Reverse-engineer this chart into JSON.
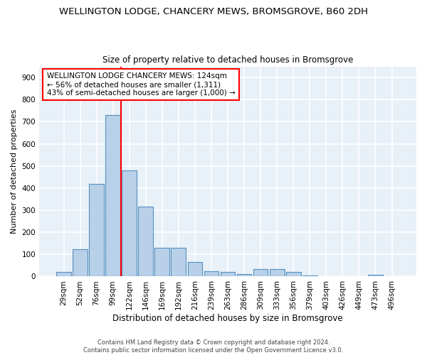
{
  "title": "WELLINGTON LODGE, CHANCERY MEWS, BROMSGROVE, B60 2DH",
  "subtitle": "Size of property relative to detached houses in Bromsgrove",
  "xlabel": "Distribution of detached houses by size in Bromsgrove",
  "ylabel": "Number of detached properties",
  "categories": [
    "29sqm",
    "52sqm",
    "76sqm",
    "99sqm",
    "122sqm",
    "146sqm",
    "169sqm",
    "192sqm",
    "216sqm",
    "239sqm",
    "263sqm",
    "286sqm",
    "309sqm",
    "333sqm",
    "356sqm",
    "379sqm",
    "403sqm",
    "426sqm",
    "449sqm",
    "473sqm",
    "496sqm"
  ],
  "values": [
    20,
    125,
    420,
    730,
    480,
    315,
    130,
    130,
    65,
    25,
    22,
    12,
    35,
    35,
    20,
    5,
    0,
    0,
    0,
    8,
    0
  ],
  "bar_color": "#b8d0e8",
  "bar_edge_color": "#5590c0",
  "vline_x": 3.5,
  "vline_color": "red",
  "annotation_lines": [
    "WELLINGTON LODGE CHANCERY MEWS: 124sqm",
    "← 56% of detached houses are smaller (1,311)",
    "43% of semi-detached houses are larger (1,000) →"
  ],
  "ylim": [
    0,
    950
  ],
  "yticks": [
    0,
    100,
    200,
    300,
    400,
    500,
    600,
    700,
    800,
    900
  ],
  "bg_color": "#e8f0f8",
  "grid_color": "white",
  "footer": "Contains HM Land Registry data © Crown copyright and database right 2024.\nContains public sector information licensed under the Open Government Licence v3.0.",
  "title_fontsize": 9.5,
  "subtitle_fontsize": 8.5,
  "xlabel_fontsize": 8.5,
  "ylabel_fontsize": 8.0,
  "tick_fontsize": 7.5,
  "footer_fontsize": 6.0,
  "annot_fontsize": 7.5
}
